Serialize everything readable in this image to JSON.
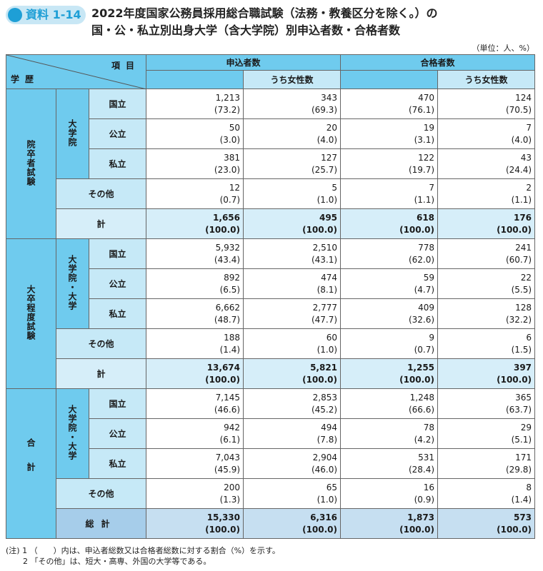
{
  "badge": "資料 1-14",
  "title_line1": "2022年度国家公務員採用総合職試験（法務・教養区分を除く。）の",
  "title_line2": "国・公・私立別出身大学（含大学院）別申込者数・合格者数",
  "unit": "（単位：人、%）",
  "header": {
    "item": "項目",
    "gakureki": "学歴",
    "applicants": "申込者数",
    "passers": "合格者数",
    "women": "うち女性数"
  },
  "sections": [
    {
      "label": "院卒者試験",
      "sublabel": "大学院",
      "rows": [
        {
          "label": "国立",
          "v": [
            "1,213",
            "343",
            "470",
            "124"
          ],
          "p": [
            "(73.2)",
            "(69.3)",
            "(76.1)",
            "(70.5)"
          ]
        },
        {
          "label": "公立",
          "v": [
            "50",
            "20",
            "19",
            "7"
          ],
          "p": [
            "(3.0)",
            "(4.0)",
            "(3.1)",
            "(4.0)"
          ]
        },
        {
          "label": "私立",
          "v": [
            "381",
            "127",
            "122",
            "43"
          ],
          "p": [
            "(23.0)",
            "(25.7)",
            "(19.7)",
            "(24.4)"
          ]
        },
        {
          "label": "その他",
          "v": [
            "12",
            "5",
            "7",
            "2"
          ],
          "p": [
            "(0.7)",
            "(1.0)",
            "(1.1)",
            "(1.1)"
          ]
        },
        {
          "label": "計",
          "v": [
            "1,656",
            "495",
            "618",
            "176"
          ],
          "p": [
            "(100.0)",
            "(100.0)",
            "(100.0)",
            "(100.0)"
          ]
        }
      ]
    },
    {
      "label": "大卒程度試験",
      "sublabel": "大学院・大学",
      "rows": [
        {
          "label": "国立",
          "v": [
            "5,932",
            "2,510",
            "778",
            "241"
          ],
          "p": [
            "(43.4)",
            "(43.1)",
            "(62.0)",
            "(60.7)"
          ]
        },
        {
          "label": "公立",
          "v": [
            "892",
            "474",
            "59",
            "22"
          ],
          "p": [
            "(6.5)",
            "(8.1)",
            "(4.7)",
            "(5.5)"
          ]
        },
        {
          "label": "私立",
          "v": [
            "6,662",
            "2,777",
            "409",
            "128"
          ],
          "p": [
            "(48.7)",
            "(47.7)",
            "(32.6)",
            "(32.2)"
          ]
        },
        {
          "label": "その他",
          "v": [
            "188",
            "60",
            "9",
            "6"
          ],
          "p": [
            "(1.4)",
            "(1.0)",
            "(0.7)",
            "(1.5)"
          ]
        },
        {
          "label": "計",
          "v": [
            "13,674",
            "5,821",
            "1,255",
            "397"
          ],
          "p": [
            "(100.0)",
            "(100.0)",
            "(100.0)",
            "(100.0)"
          ]
        }
      ]
    },
    {
      "label": "合計",
      "sublabel": "大学院・大学",
      "rows": [
        {
          "label": "国立",
          "v": [
            "7,145",
            "2,853",
            "1,248",
            "365"
          ],
          "p": [
            "(46.6)",
            "(45.2)",
            "(66.6)",
            "(63.7)"
          ]
        },
        {
          "label": "公立",
          "v": [
            "942",
            "494",
            "78",
            "29"
          ],
          "p": [
            "(6.1)",
            "(7.8)",
            "(4.2)",
            "(5.1)"
          ]
        },
        {
          "label": "私立",
          "v": [
            "7,043",
            "2,904",
            "531",
            "171"
          ],
          "p": [
            "(45.9)",
            "(46.0)",
            "(28.4)",
            "(29.8)"
          ]
        },
        {
          "label": "その他",
          "v": [
            "200",
            "65",
            "16",
            "8"
          ],
          "p": [
            "(1.3)",
            "(1.0)",
            "(0.9)",
            "(1.4)"
          ]
        },
        {
          "label": "総計",
          "v": [
            "15,330",
            "6,316",
            "1,873",
            "573"
          ],
          "p": [
            "(100.0)",
            "(100.0)",
            "(100.0)",
            "(100.0)"
          ]
        }
      ]
    }
  ],
  "notes": [
    "(注) 1 （　　）内は、申込者総数又は合格者総数に対する割合（%）を示す。",
    "2 「その他」は、短大・高専、外国の大学等である。"
  ]
}
